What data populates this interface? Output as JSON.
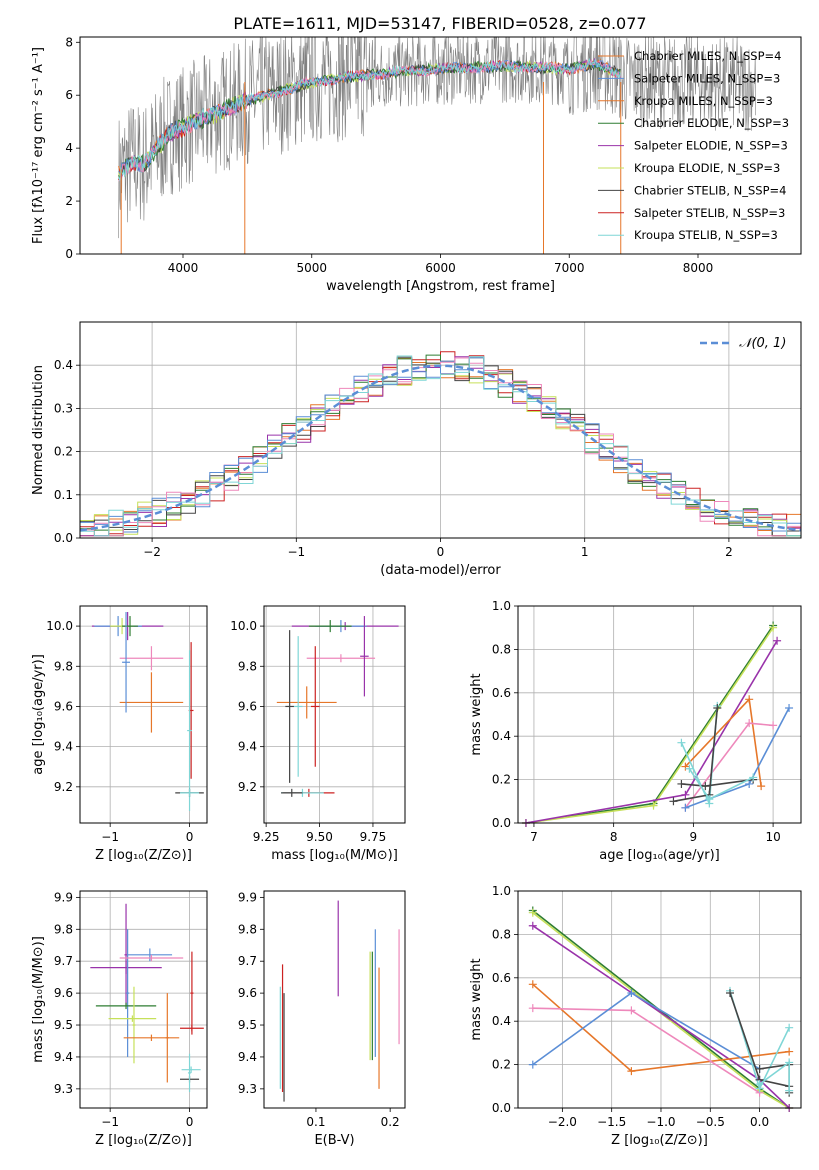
{
  "figure": {
    "title": "PLATE=1611, MJD=53147, FIBERID=0528, z=0.077"
  },
  "colors": {
    "grey": "#808080",
    "cyan": "#7fd6d6",
    "orange": "#e6772a",
    "red": "#cc2222",
    "purple": "#9933aa",
    "yellowgreen": "#c6e05a",
    "darkgreen": "#2e7d32",
    "darkgrey": "#444444",
    "blue": "#5b8ed6",
    "pink": "#ee88bb",
    "normal": "#5b8ed6"
  },
  "chart_data": [
    {
      "id": "spectrum",
      "type": "line",
      "xlabel": "wavelength [Angstrom, rest frame]",
      "ylabel": "Flux [fλ10⁻¹⁷ erg cm⁻² s⁻¹ A⁻¹]",
      "xlim": [
        3200,
        8800
      ],
      "ylim": [
        0,
        8.2
      ],
      "xticks": [
        4000,
        5000,
        6000,
        7000,
        8000
      ],
      "yticks": [
        0,
        2,
        4,
        6,
        8
      ],
      "grid": false,
      "legend_position": "right",
      "legend": [
        {
          "label": "Chabrier MILES, N_SSP=4",
          "color": "#e6772a"
        },
        {
          "label": "Salpeter MILES, N_SSP=3",
          "color": "#5b8ed6"
        },
        {
          "label": "Kroupa MILES, N_SSP=3",
          "color": "#e6772a"
        },
        {
          "label": "Chabrier ELODIE, N_SSP=3",
          "color": "#2e7d32"
        },
        {
          "label": "Salpeter ELODIE, N_SSP=3",
          "color": "#9933aa"
        },
        {
          "label": "Kroupa ELODIE, N_SSP=3",
          "color": "#c6e05a"
        },
        {
          "label": "Chabrier STELIB, N_SSP=4",
          "color": "#444444"
        },
        {
          "label": "Salpeter STELIB, N_SSP=3",
          "color": "#cc2222"
        },
        {
          "label": "Kroupa STELIB, N_SSP=3",
          "color": "#7fd6d6"
        }
      ],
      "model_trend": {
        "x": [
          3500,
          3600,
          3700,
          3800,
          3900,
          4000,
          4100,
          4200,
          4300,
          4500,
          4800,
          5000,
          5500,
          6000,
          6500,
          7000,
          7200,
          7400
        ],
        "y": [
          3.0,
          3.5,
          3.4,
          4.0,
          4.6,
          4.8,
          5.0,
          5.2,
          5.4,
          5.8,
          6.2,
          6.5,
          6.8,
          7.0,
          7.1,
          7.0,
          7.2,
          6.8
        ]
      },
      "data_range_x": [
        3500,
        8450
      ],
      "model_range_x": [
        3500,
        7400
      ],
      "spikes": [
        {
          "x": 4480,
          "y_low": 0
        },
        {
          "x": 6800,
          "y_low": 0
        },
        {
          "x": 7400,
          "y_low": 0
        }
      ]
    },
    {
      "id": "residuals",
      "type": "bar",
      "xlabel": "(data-model)/error",
      "ylabel": "Normed distribution",
      "xlim": [
        -2.5,
        2.5
      ],
      "ylim": [
        0,
        0.5
      ],
      "xticks": [
        -2,
        -1,
        0,
        1,
        2
      ],
      "yticks": [
        0.0,
        0.1,
        0.2,
        0.3,
        0.4
      ],
      "grid": true,
      "legend_position": "top-right",
      "legend": [
        {
          "label": "𝒩(0, 1)",
          "color": "#5b8ed6"
        }
      ],
      "bin_width": 0.1
    },
    {
      "id": "age_vs_Z",
      "type": "scatter",
      "xlabel": "Z [log₁₀(Z/Z⊙)]",
      "ylabel": "age  [log₁₀(age/yr)]",
      "xlim": [
        -1.38,
        0.22
      ],
      "ylim": [
        9.02,
        10.1
      ],
      "xticks": [
        -1,
        0
      ],
      "yticks": [
        9.2,
        9.4,
        9.6,
        9.8,
        10.0
      ],
      "grid": true,
      "crosses": [
        {
          "x": -0.78,
          "y": 10.0,
          "xerr": 0.45,
          "yerr": 0.07,
          "color": "#9933aa"
        },
        {
          "x": -0.9,
          "y": 10.0,
          "xerr": 0.3,
          "yerr": 0.05,
          "color": "#5b8ed6"
        },
        {
          "x": -0.85,
          "y": 10.0,
          "xerr": 0.15,
          "yerr": 0.04,
          "color": "#c6e05a"
        },
        {
          "x": -0.75,
          "y": 10.0,
          "xerr": 0.1,
          "yerr": 0.05,
          "color": "#2e7d32"
        },
        {
          "x": -0.48,
          "y": 9.84,
          "xerr": 0.4,
          "yerr": 0.06,
          "color": "#ee88bb"
        },
        {
          "x": -0.48,
          "y": 9.62,
          "xerr": 0.4,
          "yerr": 0.15,
          "color": "#e6772a"
        },
        {
          "x": -0.8,
          "y": 9.82,
          "xerr": 0.05,
          "yerr": 0.25,
          "color": "#5b8ed6"
        },
        {
          "x": 0.02,
          "y": 9.58,
          "xerr": 0.03,
          "yerr": 0.34,
          "color": "#cc2222"
        },
        {
          "x": 0.0,
          "y": 9.48,
          "xerr": 0.03,
          "yerr": 0.4,
          "color": "#7fd6d6"
        },
        {
          "x": 0.0,
          "y": 9.17,
          "xerr": 0.18,
          "yerr": 0.02,
          "color": "#444444"
        },
        {
          "x": 0.0,
          "y": 9.17,
          "xerr": 0.12,
          "yerr": 0.02,
          "color": "#7fd6d6"
        }
      ]
    },
    {
      "id": "age_vs_mass",
      "type": "scatter",
      "xlabel": "mass [log₁₀(M/M⊙)]",
      "ylabel": "",
      "xlim": [
        9.24,
        9.9
      ],
      "ylim": [
        9.02,
        10.1
      ],
      "xticks": [
        9.25,
        9.5,
        9.75
      ],
      "yticks": [
        9.2,
        9.4,
        9.6,
        9.8,
        10.0
      ],
      "grid": true,
      "crosses": [
        {
          "x": 9.62,
          "y": 10.0,
          "xerr": 0.25,
          "yerr": 0.02,
          "color": "#9933aa"
        },
        {
          "x": 9.6,
          "y": 10.0,
          "xerr": 0.12,
          "yerr": 0.03,
          "color": "#5b8ed6"
        },
        {
          "x": 9.55,
          "y": 10.0,
          "xerr": 0.1,
          "yerr": 0.03,
          "color": "#2e7d32"
        },
        {
          "x": 9.6,
          "y": 9.84,
          "xerr": 0.16,
          "yerr": 0.02,
          "color": "#ee88bb"
        },
        {
          "x": 9.44,
          "y": 9.62,
          "xerr": 0.14,
          "yerr": 0.08,
          "color": "#e6772a"
        },
        {
          "x": 9.71,
          "y": 9.85,
          "xerr": 0.02,
          "yerr": 0.2,
          "color": "#9933aa"
        },
        {
          "x": 9.48,
          "y": 9.6,
          "xerr": 0.02,
          "yerr": 0.3,
          "color": "#cc2222"
        },
        {
          "x": 9.4,
          "y": 9.6,
          "xerr": 0.02,
          "yerr": 0.35,
          "color": "#7fd6d6"
        },
        {
          "x": 9.36,
          "y": 9.6,
          "xerr": 0.02,
          "yerr": 0.38,
          "color": "#444444"
        },
        {
          "x": 9.45,
          "y": 9.17,
          "xerr": 0.12,
          "yerr": 0.02,
          "color": "#cc2222"
        },
        {
          "x": 9.42,
          "y": 9.17,
          "xerr": 0.1,
          "yerr": 0.02,
          "color": "#7fd6d6"
        },
        {
          "x": 9.37,
          "y": 9.17,
          "xerr": 0.05,
          "yerr": 0.02,
          "color": "#444444"
        }
      ]
    },
    {
      "id": "weight_vs_age",
      "type": "line",
      "xlabel": "age  [log₁₀(age/yr)]",
      "ylabel": "mass weight",
      "xlim": [
        6.8,
        10.35
      ],
      "ylim": [
        0,
        1.0
      ],
      "xticks": [
        7,
        8,
        9,
        10
      ],
      "yticks": [
        0.0,
        0.2,
        0.4,
        0.6,
        0.8,
        1.0
      ],
      "grid": true,
      "series": [
        {
          "color": "#2e7d32",
          "x": [
            6.9,
            8.5,
            10.0
          ],
          "y": [
            0.0,
            0.09,
            0.91
          ]
        },
        {
          "color": "#c6e05a",
          "x": [
            6.9,
            8.5,
            10.0
          ],
          "y": [
            0.0,
            0.08,
            0.9
          ]
        },
        {
          "color": "#9933aa",
          "x": [
            6.9,
            8.9,
            10.05
          ],
          "y": [
            0.0,
            0.13,
            0.84
          ]
        },
        {
          "color": "#e6772a",
          "x": [
            8.9,
            9.7,
            9.85
          ],
          "y": [
            0.26,
            0.57,
            0.17
          ]
        },
        {
          "color": "#ee88bb",
          "x": [
            8.9,
            9.7,
            10.0
          ],
          "y": [
            0.07,
            0.46,
            0.45
          ]
        },
        {
          "color": "#5b8ed6",
          "x": [
            8.9,
            9.7,
            10.2
          ],
          "y": [
            0.07,
            0.18,
            0.53
          ]
        },
        {
          "color": "#7fd6d6",
          "x": [
            8.85,
            9.2,
            9.3
          ],
          "y": [
            0.37,
            0.09,
            0.54
          ]
        },
        {
          "color": "#444444",
          "x": [
            8.75,
            9.2,
            9.3
          ],
          "y": [
            0.1,
            0.13,
            0.53
          ]
        },
        {
          "color": "#444444",
          "x": [
            8.85,
            9.15,
            9.75
          ],
          "y": [
            0.18,
            0.17,
            0.2
          ]
        },
        {
          "color": "#7fd6d6",
          "x": [
            8.95,
            9.2,
            9.75
          ],
          "y": [
            0.25,
            0.11,
            0.21
          ]
        }
      ]
    },
    {
      "id": "mass_vs_Z",
      "type": "scatter",
      "xlabel": "Z [log₁₀(Z/Z⊙)]",
      "ylabel": "mass [log₁₀(M/M⊙)]",
      "xlim": [
        -1.38,
        0.22
      ],
      "ylim": [
        9.24,
        9.92
      ],
      "xticks": [
        -1,
        0
      ],
      "yticks": [
        9.3,
        9.4,
        9.5,
        9.6,
        9.7,
        9.8,
        9.9
      ],
      "grid": true,
      "crosses": [
        {
          "x": -0.8,
          "y": 9.68,
          "xerr": 0.45,
          "yerr": 0.02,
          "color": "#9933aa"
        },
        {
          "x": -0.8,
          "y": 9.72,
          "xerr": 0.02,
          "yerr": 0.16,
          "color": "#9933aa"
        },
        {
          "x": -0.5,
          "y": 9.72,
          "xerr": 0.28,
          "yerr": 0.02,
          "color": "#5b8ed6"
        },
        {
          "x": -0.78,
          "y": 9.6,
          "xerr": 0.02,
          "yerr": 0.2,
          "color": "#5b8ed6"
        },
        {
          "x": -0.48,
          "y": 9.71,
          "xerr": 0.4,
          "yerr": 0.01,
          "color": "#ee88bb"
        },
        {
          "x": -0.8,
          "y": 9.56,
          "xerr": 0.38,
          "yerr": 0.01,
          "color": "#2e7d32"
        },
        {
          "x": -0.72,
          "y": 9.52,
          "xerr": 0.3,
          "yerr": 0.01,
          "color": "#c6e05a"
        },
        {
          "x": -0.7,
          "y": 9.5,
          "xerr": 0.02,
          "yerr": 0.12,
          "color": "#c6e05a"
        },
        {
          "x": -0.48,
          "y": 9.46,
          "xerr": 0.35,
          "yerr": 0.01,
          "color": "#e6772a"
        },
        {
          "x": -0.28,
          "y": 9.46,
          "xerr": 0.02,
          "yerr": 0.14,
          "color": "#e6772a"
        },
        {
          "x": 0.03,
          "y": 9.49,
          "xerr": 0.15,
          "yerr": 0.01,
          "color": "#cc2222"
        },
        {
          "x": 0.03,
          "y": 9.6,
          "xerr": 0.02,
          "yerr": 0.13,
          "color": "#cc2222"
        },
        {
          "x": 0.02,
          "y": 9.36,
          "xerr": 0.12,
          "yerr": 0.01,
          "color": "#7fd6d6"
        },
        {
          "x": 0.0,
          "y": 9.33,
          "xerr": 0.12,
          "yerr": 0.01,
          "color": "#444444"
        },
        {
          "x": 0.0,
          "y": 9.35,
          "xerr": 0.02,
          "yerr": 0.06,
          "color": "#7fd6d6"
        }
      ]
    },
    {
      "id": "mass_vs_ebv",
      "type": "scatter",
      "xlabel": "E(B-V)",
      "ylabel": "",
      "xlim": [
        0.03,
        0.22
      ],
      "ylim": [
        9.24,
        9.92
      ],
      "xticks": [
        0.1,
        0.2
      ],
      "yticks": [
        9.3,
        9.4,
        9.5,
        9.6,
        9.7,
        9.8,
        9.9
      ],
      "grid": false,
      "crosses": [
        {
          "x": 0.052,
          "y": 9.46,
          "xerr": 0.0,
          "yerr": 0.16,
          "color": "#7fd6d6"
        },
        {
          "x": 0.055,
          "y": 9.49,
          "xerr": 0.0,
          "yerr": 0.2,
          "color": "#cc2222"
        },
        {
          "x": 0.057,
          "y": 9.43,
          "xerr": 0.0,
          "yerr": 0.17,
          "color": "#444444"
        },
        {
          "x": 0.13,
          "y": 9.74,
          "xerr": 0.0,
          "yerr": 0.15,
          "color": "#9933aa"
        },
        {
          "x": 0.173,
          "y": 9.56,
          "xerr": 0.0,
          "yerr": 0.17,
          "color": "#c6e05a"
        },
        {
          "x": 0.176,
          "y": 9.56,
          "xerr": 0.0,
          "yerr": 0.17,
          "color": "#2e7d32"
        },
        {
          "x": 0.18,
          "y": 9.6,
          "xerr": 0.0,
          "yerr": 0.2,
          "color": "#5b8ed6"
        },
        {
          "x": 0.185,
          "y": 9.49,
          "xerr": 0.0,
          "yerr": 0.19,
          "color": "#e6772a"
        },
        {
          "x": 0.212,
          "y": 9.62,
          "xerr": 0.0,
          "yerr": 0.18,
          "color": "#ee88bb"
        }
      ]
    },
    {
      "id": "weight_vs_Z",
      "type": "line",
      "xlabel": "Z [log₁₀(Z/Z⊙)]",
      "ylabel": "mass weight",
      "xlim": [
        -2.45,
        0.42
      ],
      "ylim": [
        0,
        1.0
      ],
      "xticks": [
        -2.0,
        -1.5,
        -1.0,
        -0.5,
        0.0
      ],
      "yticks": [
        0.0,
        0.2,
        0.4,
        0.6,
        0.8,
        1.0
      ],
      "grid": true,
      "series": [
        {
          "color": "#2e7d32",
          "x": [
            -2.3,
            0.0,
            0.3
          ],
          "y": [
            0.91,
            0.09,
            0.0
          ]
        },
        {
          "color": "#c6e05a",
          "x": [
            -2.3,
            0.0,
            0.3
          ],
          "y": [
            0.9,
            0.08,
            0.0
          ]
        },
        {
          "color": "#9933aa",
          "x": [
            -2.3,
            0.0,
            0.3
          ],
          "y": [
            0.84,
            0.13,
            0.0
          ]
        },
        {
          "color": "#e6772a",
          "x": [
            -2.3,
            -1.3,
            0.3
          ],
          "y": [
            0.57,
            0.17,
            0.26
          ]
        },
        {
          "color": "#ee88bb",
          "x": [
            -2.3,
            -1.3,
            0.0
          ],
          "y": [
            0.46,
            0.45,
            0.07
          ]
        },
        {
          "color": "#5b8ed6",
          "x": [
            -2.3,
            -1.3,
            0.0
          ],
          "y": [
            0.2,
            0.53,
            0.18
          ]
        },
        {
          "color": "#7fd6d6",
          "x": [
            -0.3,
            0.0,
            0.3
          ],
          "y": [
            0.54,
            0.09,
            0.37
          ]
        },
        {
          "color": "#444444",
          "x": [
            -0.3,
            0.0,
            0.3
          ],
          "y": [
            0.53,
            0.13,
            0.1
          ]
        },
        {
          "color": "#444444",
          "x": [
            0.0,
            0.3,
            0.3
          ],
          "y": [
            0.18,
            0.2,
            0.07
          ]
        },
        {
          "color": "#7fd6d6",
          "x": [
            0.0,
            0.3,
            0.3
          ],
          "y": [
            0.11,
            0.21,
            0.08
          ]
        }
      ]
    }
  ]
}
